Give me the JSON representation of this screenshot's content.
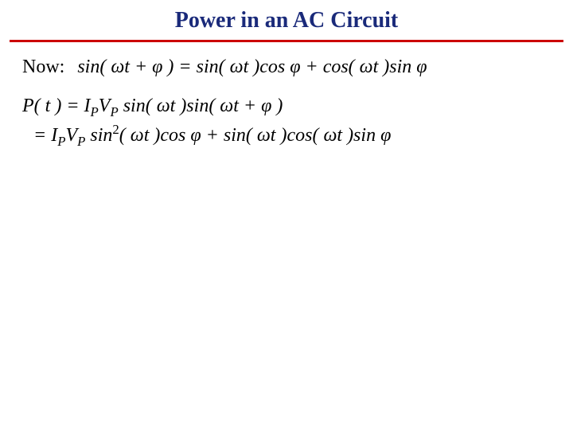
{
  "title": {
    "text": "Power in an AC Circuit",
    "color": "#1a2a7a",
    "fontsize": 28
  },
  "rule_color": "#cc0000",
  "now_label": "Now:",
  "eq_now": "sin( ωt + φ ) = sin( ωt )cos φ + cos( ωt )sin φ",
  "eq_p1": "P( t ) = I",
  "eq_p1_subP1": "P",
  "eq_p1_mid": "V",
  "eq_p1_subP2": "P",
  "eq_p1_rest": " sin( ωt )sin( ωt + φ )",
  "eq_p2_lead": "= I",
  "eq_p2_subP1": "P",
  "eq_p2_mid": "V",
  "eq_p2_subP2": "P",
  "eq_p2_sin": " sin",
  "eq_p2_sup": "2",
  "eq_p2_rest": "( ωt )cos φ + sin( ωt )cos( ωt )sin φ",
  "background_color": "#ffffff",
  "text_color": "#000000"
}
